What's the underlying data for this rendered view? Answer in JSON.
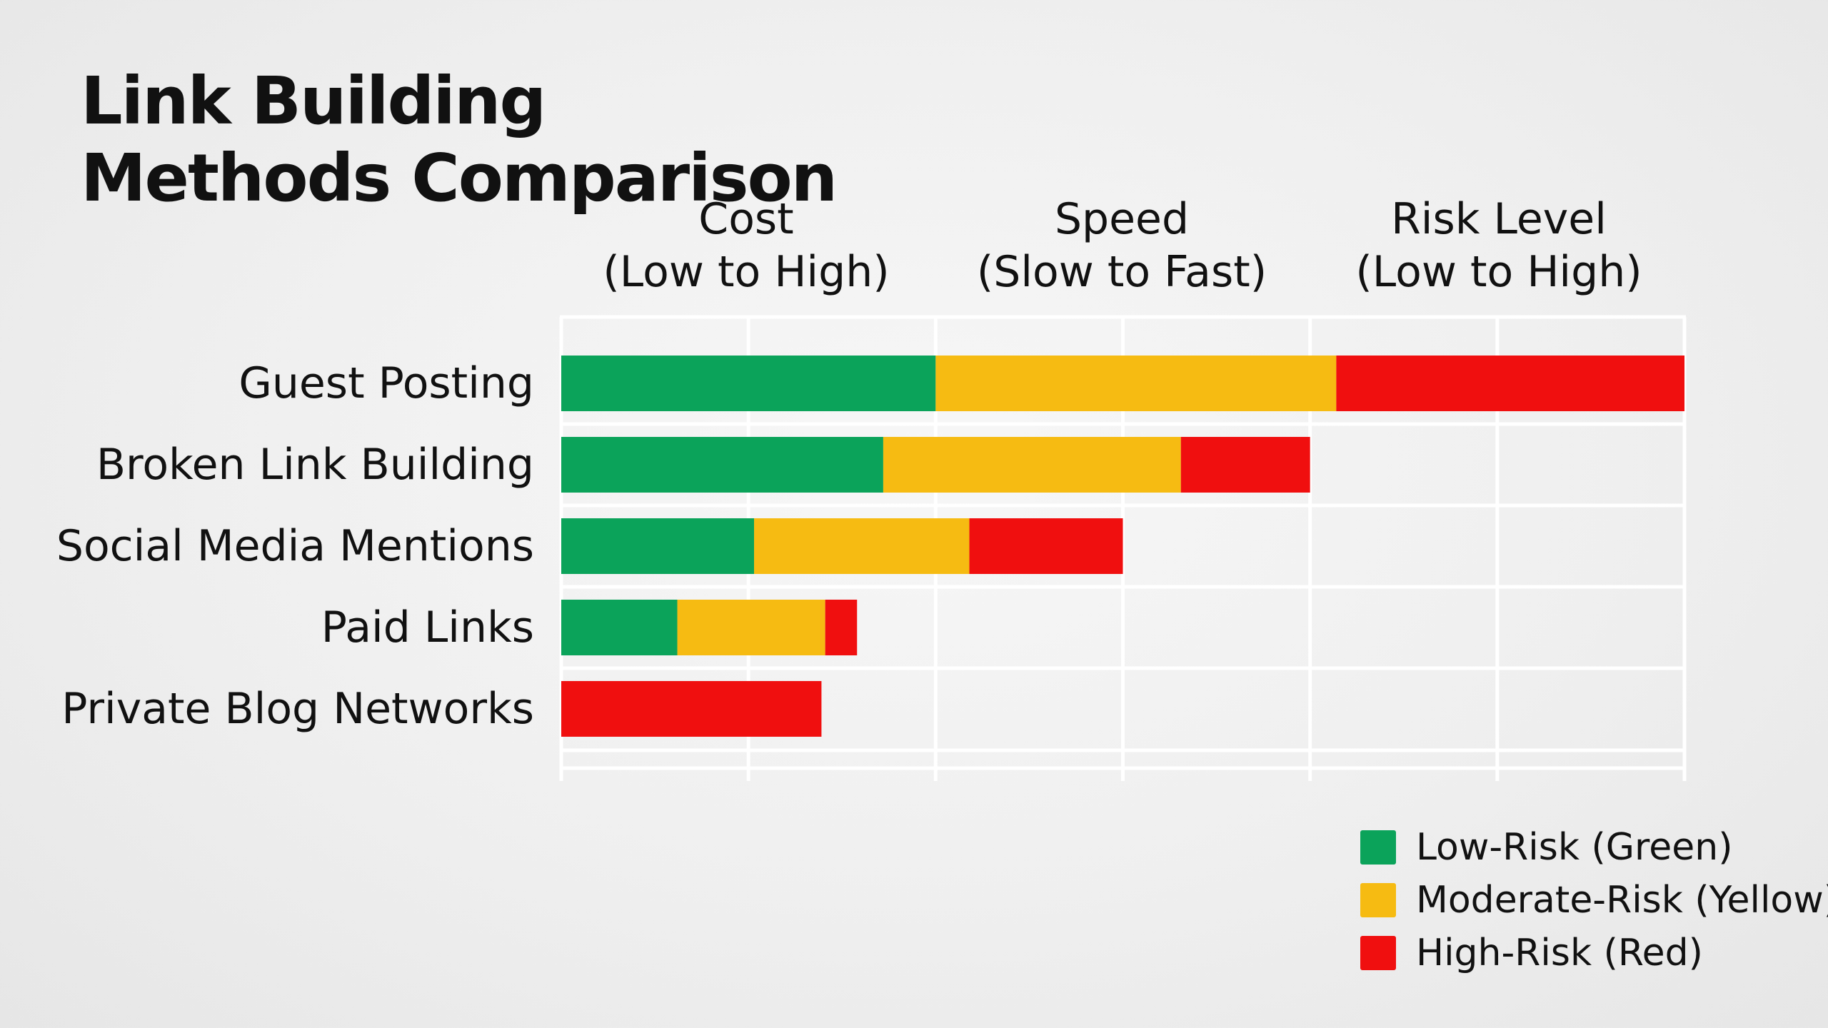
{
  "chart_data": {
    "type": "bar",
    "stacked": true,
    "orientation": "horizontal",
    "title": "Link Building Methods Comparison",
    "column_headers": [
      {
        "line1": "Cost",
        "line2": "(Low to High)"
      },
      {
        "line1": "Speed",
        "line2": "(Slow to Fast)"
      },
      {
        "line1": "Risk Level",
        "line2": "(Low to High)"
      }
    ],
    "categories": [
      "Guest Posting",
      "Broken Link Building",
      "Social Media Mentions",
      "Paid Links",
      "Private Blog Networks"
    ],
    "xlim": [
      0,
      6
    ],
    "grid": true,
    "legend_position": "bottom-right",
    "series": [
      {
        "name": "Low-Risk (Green)",
        "color": "#0ba35a",
        "values": [
          2.0,
          1.72,
          1.03,
          0.62,
          0
        ]
      },
      {
        "name": "Moderate-Risk (Yellow)",
        "color": "#f6bb12",
        "values": [
          2.14,
          1.59,
          1.15,
          0.79,
          0
        ]
      },
      {
        "name": "High-Risk (Red)",
        "color": "#f00f0f",
        "values": [
          1.86,
          0.69,
          0.82,
          0.17,
          1.39
        ]
      }
    ]
  }
}
